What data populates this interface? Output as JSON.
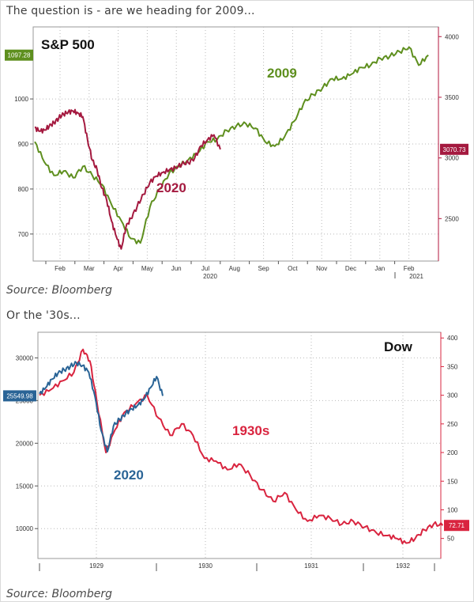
{
  "intro_text": "The question is - are we heading for 2009...",
  "mid_text": "Or the '30s...",
  "source_1": "Source: Bloomberg",
  "source_2": "Source: Bloomberg",
  "colors": {
    "green": "#5e8f1e",
    "crimson": "#a4193f",
    "blue": "#2a6496",
    "red": "#d9243f",
    "axis_red": "#b3163d"
  },
  "chart_data": [
    {
      "type": "line",
      "title": "S&P 500",
      "xlabel": "",
      "ylabel": "",
      "x_ticks": [
        "Feb",
        "Mar",
        "Apr",
        "May",
        "Jun",
        "Jul",
        "Aug",
        "Sep",
        "Oct",
        "Nov",
        "Dec",
        "Jan",
        "Feb"
      ],
      "x_year_labels": [
        "2020",
        "2021"
      ],
      "left_axis": {
        "ticks": [
          "700",
          "800",
          "900",
          "1000"
        ],
        "range": [
          640,
          1160
        ],
        "current_value_label": "1097.28"
      },
      "right_axis": {
        "ticks": [
          "2500",
          "3000",
          "3500",
          "4000"
        ],
        "range": [
          2150,
          4080
        ],
        "current_value_label": "3070.73"
      },
      "series": [
        {
          "name": "2009",
          "axis": "left",
          "color": "#5e8f1e",
          "x": [
            0.0,
            0.3,
            0.6,
            0.9,
            1.2,
            1.5,
            1.8,
            2.1,
            2.4,
            2.7,
            3.0,
            3.3,
            3.6,
            3.9,
            4.2,
            4.5,
            4.8,
            5.1,
            5.4,
            5.7,
            6.0,
            6.3,
            6.6,
            6.9,
            7.2,
            7.5,
            7.8,
            8.1,
            8.4,
            8.7,
            9.0,
            9.3,
            9.6,
            9.9,
            10.2,
            10.5,
            10.8,
            11.1,
            11.4,
            11.7,
            12.0,
            12.3
          ],
          "y": [
            905,
            860,
            830,
            840,
            825,
            850,
            830,
            810,
            765,
            730,
            690,
            680,
            760,
            800,
            835,
            850,
            865,
            880,
            905,
            910,
            930,
            940,
            945,
            935,
            905,
            895,
            915,
            950,
            990,
            1010,
            1025,
            1045,
            1045,
            1055,
            1070,
            1075,
            1090,
            1095,
            1105,
            1115,
            1075,
            1097.28
          ]
        },
        {
          "name": "2020",
          "axis": "right",
          "color": "#a4193f",
          "x": [
            0.0,
            0.15,
            0.3,
            0.45,
            0.6,
            0.75,
            0.9,
            1.05,
            1.2,
            1.35,
            1.5,
            1.65,
            1.8,
            1.95,
            2.1,
            2.25,
            2.4,
            2.55,
            2.7,
            2.85,
            3.0,
            3.2,
            3.4,
            3.6,
            3.8,
            4.0,
            4.2,
            4.4,
            4.6,
            4.8,
            5.0,
            5.2,
            5.4,
            5.6,
            5.8
          ],
          "y": [
            3250,
            3220,
            3230,
            3260,
            3290,
            3330,
            3360,
            3380,
            3385,
            3370,
            3340,
            3150,
            2980,
            2900,
            2750,
            2650,
            2480,
            2350,
            2250,
            2430,
            2500,
            2600,
            2700,
            2800,
            2850,
            2880,
            2900,
            2920,
            2950,
            2960,
            3000,
            3100,
            3150,
            3190,
            3070.73
          ]
        }
      ]
    },
    {
      "type": "line",
      "title": "Dow",
      "xlabel": "",
      "ylabel": "",
      "x_ticks": [
        "1929",
        "1930",
        "1931",
        "1932"
      ],
      "left_axis": {
        "ticks": [
          "10000",
          "15000",
          "20000",
          "25000",
          "30000"
        ],
        "range": [
          6500,
          33000
        ],
        "current_value_label": "25549.98"
      },
      "right_axis": {
        "ticks": [
          "50",
          "100",
          "150",
          "200",
          "250",
          "300",
          "350",
          "400"
        ],
        "range": [
          15,
          410
        ],
        "current_value_label": "72.71"
      },
      "series": [
        {
          "name": "2020",
          "axis": "left",
          "color": "#2a6496",
          "x": [
            0.0,
            0.1,
            0.2,
            0.3,
            0.4,
            0.5,
            0.6,
            0.7,
            0.8,
            0.9,
            1.0,
            1.1,
            1.2,
            1.3,
            1.4,
            1.5,
            1.6,
            1.7,
            1.8,
            1.9,
            2.0
          ],
          "y": [
            25800,
            26500,
            27500,
            28200,
            28600,
            29000,
            29400,
            29100,
            28300,
            25500,
            21500,
            19000,
            22000,
            22800,
            23500,
            24000,
            24500,
            25200,
            26500,
            27800,
            25549.98
          ]
        },
        {
          "name": "1930s",
          "axis": "right",
          "color": "#d9243f",
          "x": [
            0.0,
            0.25,
            0.5,
            0.75,
            0.95,
            1.1,
            1.25,
            1.45,
            1.65,
            1.85,
            2.1,
            2.35,
            2.6,
            2.85,
            3.1,
            3.35,
            3.6,
            3.85,
            4.1,
            4.35,
            4.6,
            4.85,
            5.1,
            5.35,
            5.6,
            5.85,
            6.1,
            6.35,
            6.6,
            6.85,
            7.1,
            7.35,
            7.6,
            7.8,
            8.0,
            8.2,
            8.4,
            8.6,
            8.8
          ],
          "y": [
            300,
            310,
            325,
            340,
            380,
            360,
            290,
            200,
            240,
            270,
            285,
            300,
            260,
            230,
            250,
            230,
            190,
            185,
            170,
            180,
            160,
            135,
            115,
            130,
            100,
            80,
            90,
            85,
            75,
            80,
            70,
            60,
            55,
            50,
            42,
            50,
            65,
            75,
            72.71
          ]
        }
      ]
    }
  ]
}
